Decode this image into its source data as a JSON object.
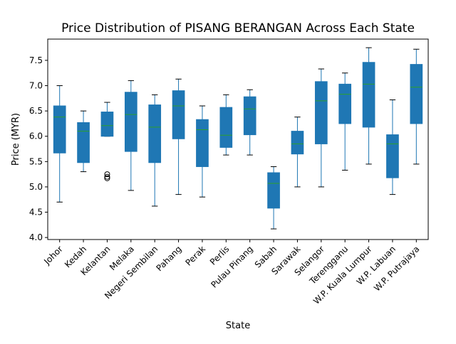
{
  "chart_data": {
    "type": "box",
    "title": "Price Distribution of PISANG BERANGAN Across Each State",
    "xlabel": "State",
    "ylabel": "Price (MYR)",
    "ylim": [
      3.96,
      7.92
    ],
    "yticks": [
      "4.0",
      "4.5",
      "5.0",
      "5.5",
      "6.0",
      "6.5",
      "7.0",
      "7.5"
    ],
    "grid": false,
    "colors": {
      "box_fill": "#1f77b4",
      "median": "#2ca02c",
      "whisker": "#1f77b4",
      "cap": "#000000",
      "outlier": "#000000",
      "axis": "#000000"
    },
    "categories": [
      "Johor",
      "Kedah",
      "Kelantan",
      "Melaka",
      "Negeri Sembilan",
      "Pahang",
      "Perak",
      "Perlis",
      "Pulau Pinang",
      "Sabah",
      "Sarawak",
      "Selangor",
      "Terengganu",
      "W.P. Kuala Lumpur",
      "W.P. Labuan",
      "W.P. Putrajaya"
    ],
    "boxes": [
      {
        "whisker_low": 4.7,
        "q1": 5.67,
        "median": 6.38,
        "q3": 6.6,
        "whisker_high": 7.0,
        "outliers": []
      },
      {
        "whisker_low": 5.3,
        "q1": 5.48,
        "median": 6.1,
        "q3": 6.27,
        "whisker_high": 6.5,
        "outliers": []
      },
      {
        "whisker_low": 6.0,
        "q1": 6.0,
        "median": 6.21,
        "q3": 6.48,
        "whisker_high": 6.67,
        "outliers": [
          5.17,
          5.2,
          5.25
        ]
      },
      {
        "whisker_low": 4.93,
        "q1": 5.7,
        "median": 6.43,
        "q3": 6.87,
        "whisker_high": 7.1,
        "outliers": []
      },
      {
        "whisker_low": 4.62,
        "q1": 5.48,
        "median": 6.18,
        "q3": 6.62,
        "whisker_high": 6.82,
        "outliers": []
      },
      {
        "whisker_low": 4.85,
        "q1": 5.95,
        "median": 6.6,
        "q3": 6.9,
        "whisker_high": 7.13,
        "outliers": []
      },
      {
        "whisker_low": 4.8,
        "q1": 5.4,
        "median": 6.13,
        "q3": 6.33,
        "whisker_high": 6.6,
        "outliers": []
      },
      {
        "whisker_low": 5.63,
        "q1": 5.78,
        "median": 6.02,
        "q3": 6.57,
        "whisker_high": 6.82,
        "outliers": []
      },
      {
        "whisker_low": 5.63,
        "q1": 6.03,
        "median": 6.54,
        "q3": 6.78,
        "whisker_high": 6.92,
        "outliers": []
      },
      {
        "whisker_low": 4.17,
        "q1": 4.58,
        "median": 5.07,
        "q3": 5.28,
        "whisker_high": 5.4,
        "outliers": []
      },
      {
        "whisker_low": 5.0,
        "q1": 5.65,
        "median": 5.85,
        "q3": 6.1,
        "whisker_high": 6.38,
        "outliers": []
      },
      {
        "whisker_low": 5.0,
        "q1": 5.85,
        "median": 6.7,
        "q3": 7.08,
        "whisker_high": 7.33,
        "outliers": []
      },
      {
        "whisker_low": 5.33,
        "q1": 6.25,
        "median": 6.83,
        "q3": 7.03,
        "whisker_high": 7.25,
        "outliers": []
      },
      {
        "whisker_low": 5.45,
        "q1": 6.18,
        "median": 7.03,
        "q3": 7.46,
        "whisker_high": 7.75,
        "outliers": []
      },
      {
        "whisker_low": 4.85,
        "q1": 5.18,
        "median": 5.85,
        "q3": 6.03,
        "whisker_high": 6.72,
        "outliers": []
      },
      {
        "whisker_low": 5.45,
        "q1": 6.25,
        "median": 6.97,
        "q3": 7.42,
        "whisker_high": 7.72,
        "outliers": []
      }
    ]
  }
}
